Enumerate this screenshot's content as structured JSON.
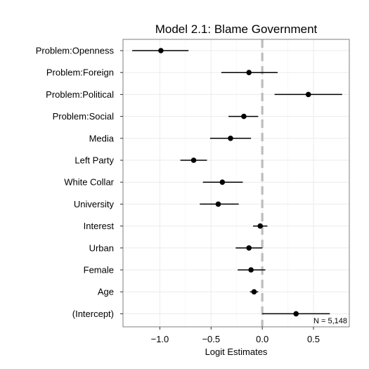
{
  "chart_data": {
    "type": "scatter",
    "title": "Model 2.1: Blame Government",
    "xlabel": "Logit Estimates",
    "ylabel": "",
    "xlim": [
      -1.36,
      0.85
    ],
    "xticks": [
      -1.0,
      -0.5,
      0.0,
      0.5
    ],
    "xtick_labels": [
      "−1.0",
      "−0.5",
      "0.0",
      "0.5"
    ],
    "grid": true,
    "reference_line": 0,
    "colors": {
      "point": "#000000",
      "interval": "#000000",
      "reference": "#bdbdbd",
      "grid": "#ebebeb",
      "panel_border": "#7f7f7f"
    },
    "annotation": "N = 5,148",
    "terms": [
      {
        "label": "Problem:Openness",
        "estimate": -0.99,
        "low": -1.27,
        "high": -0.72
      },
      {
        "label": "Problem:Foreign",
        "estimate": -0.13,
        "low": -0.4,
        "high": 0.15
      },
      {
        "label": "Problem:Political",
        "estimate": 0.45,
        "low": 0.12,
        "high": 0.78
      },
      {
        "label": "Problem:Social",
        "estimate": -0.18,
        "low": -0.33,
        "high": -0.04
      },
      {
        "label": "Media",
        "estimate": -0.31,
        "low": -0.51,
        "high": -0.11
      },
      {
        "label": "Left Party",
        "estimate": -0.67,
        "low": -0.8,
        "high": -0.54
      },
      {
        "label": "White Collar",
        "estimate": -0.39,
        "low": -0.58,
        "high": -0.19
      },
      {
        "label": "University",
        "estimate": -0.43,
        "low": -0.61,
        "high": -0.23
      },
      {
        "label": "Interest",
        "estimate": -0.02,
        "low": -0.09,
        "high": 0.05
      },
      {
        "label": "Urban",
        "estimate": -0.13,
        "low": -0.26,
        "high": 0.0
      },
      {
        "label": "Female",
        "estimate": -0.11,
        "low": -0.24,
        "high": 0.03
      },
      {
        "label": "Age",
        "estimate": -0.08,
        "low": -0.12,
        "high": -0.04
      },
      {
        "label": "(Intercept)",
        "estimate": 0.33,
        "low": 0.0,
        "high": 0.66
      }
    ]
  }
}
